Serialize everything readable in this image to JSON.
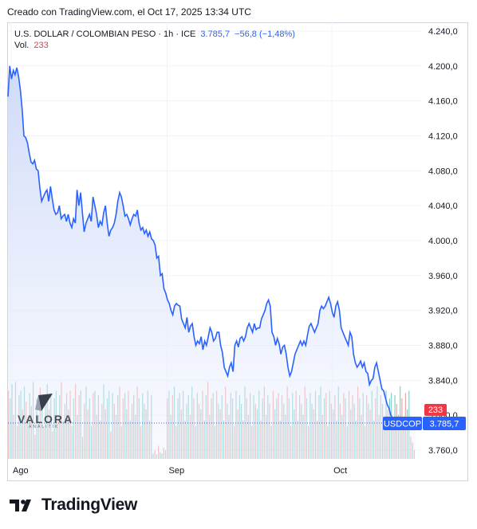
{
  "caption": "Creado con TradingView.com, el Oct 17, 2025 13:34 UTC",
  "legend": {
    "symbol": "U.S. DOLLAR / COLOMBIAN PESO · 1h · ICE",
    "last": "3.785,7",
    "change": "−56,8 (−1,48%)",
    "vol_label": "Vol.",
    "vol_value": "233"
  },
  "badges": {
    "volume": "233",
    "ticker": "USDCOP",
    "price": "3.785,7"
  },
  "watermark": {
    "name": "VALORA",
    "sub": "ANALITIK"
  },
  "brand": "TradingView",
  "colors": {
    "line": "#2962ff",
    "area_top": "#c9d6f7",
    "vol_up": "#26a69a",
    "vol_down": "#ef5350",
    "badge_price": "#2962ff",
    "badge_vol": "#f23645"
  },
  "chart_data": {
    "type": "area",
    "title": "U.S. DOLLAR / COLOMBIAN PESO · 1h · ICE",
    "x_ticks": [
      {
        "label": "Ago",
        "index": 0
      },
      {
        "label": "Sep",
        "index": 88
      },
      {
        "label": "Oct",
        "index": 181
      }
    ],
    "y_ticks": [
      "4.240,0",
      "4.200,0",
      "4.160,0",
      "4.120,0",
      "4.080,0",
      "4.040,0",
      "4.000,0",
      "3.960,0",
      "3.920,0",
      "3.880,0",
      "3.840,0",
      "3.800,0",
      "3.760,0"
    ],
    "ylim": [
      3750,
      4250
    ],
    "y_tick_values": [
      4240,
      4200,
      4160,
      4120,
      4080,
      4040,
      4000,
      3960,
      3920,
      3880,
      3840,
      3800,
      3760
    ],
    "series": [
      {
        "values": [
          4165,
          4200,
          4185,
          4195,
          4190,
          4198,
          4188,
          4172,
          4150,
          4120,
          4118,
          4112,
          4100,
          4090,
          4088,
          4092,
          4082,
          4080,
          4060,
          4045,
          4050,
          4055,
          4058,
          4045,
          4062,
          4048,
          4035,
          4030,
          4032,
          4040,
          4025,
          4028,
          4030,
          4022,
          4030,
          4020,
          4015,
          4025,
          4020,
          4058,
          4040,
          4055,
          4032,
          4010,
          4020,
          4025,
          4030,
          4022,
          4050,
          4040,
          4030,
          4015,
          4022,
          4018,
          4032,
          4040,
          4020,
          4005,
          4012,
          4015,
          4020,
          4030,
          4045,
          4055,
          4050,
          4040,
          4028,
          4030,
          4025,
          4018,
          4025,
          4030,
          4028,
          4035,
          4020,
          4012,
          4015,
          4008,
          4012,
          4005,
          4010,
          4002,
          4000,
          3995,
          3980,
          3982,
          3960,
          3962,
          3945,
          3940,
          3932,
          3928,
          3920,
          3915,
          3925,
          3928,
          3926,
          3925,
          3910,
          3905,
          3900,
          3912,
          3895,
          3902,
          3905,
          3890,
          3880,
          3885,
          3882,
          3890,
          3875,
          3885,
          3880,
          3890,
          3900,
          3895,
          3885,
          3888,
          3895,
          3895,
          3880,
          3872,
          3855,
          3850,
          3845,
          3855,
          3860,
          3850,
          3880,
          3885,
          3878,
          3888,
          3890,
          3885,
          3890,
          3900,
          3905,
          3900,
          3895,
          3905,
          3898,
          3900,
          3900,
          3910,
          3915,
          3920,
          3928,
          3932,
          3925,
          3895,
          3890,
          3880,
          3888,
          3882,
          3870,
          3878,
          3880,
          3870,
          3855,
          3845,
          3850,
          3860,
          3870,
          3875,
          3880,
          3885,
          3880,
          3885,
          3880,
          3892,
          3902,
          3905,
          3900,
          3895,
          3900,
          3905,
          3920,
          3925,
          3922,
          3925,
          3930,
          3935,
          3928,
          3918,
          3912,
          3925,
          3930,
          3920,
          3900,
          3895,
          3890,
          3885,
          3880,
          3895,
          3890,
          3870,
          3860,
          3855,
          3858,
          3862,
          3855,
          3860,
          3850,
          3848,
          3835,
          3840,
          3842,
          3855,
          3860,
          3850,
          3840,
          3830,
          3828,
          3820,
          3812,
          3808,
          3800,
          3797,
          3792,
          3786,
          3785.7,
          3785.7,
          3785.7,
          3785.7,
          3785.7,
          3785.7,
          3785.7,
          3785.7,
          3785.7,
          3785.7,
          3785.7
        ]
      }
    ],
    "volume": {
      "ylim": [
        0,
        1
      ],
      "values": [
        0.62,
        0.55,
        0.68,
        0.4,
        0.7,
        0.3,
        0.58,
        0.62,
        0.45,
        0.66,
        0.52,
        0.35,
        0.6,
        0.48,
        0.7,
        0.22,
        0.55,
        0.4,
        0.65,
        0.58,
        0.3,
        0.5,
        0.68,
        0.45,
        0.6,
        0.25,
        0.55,
        0.62,
        0.4,
        0.58,
        0.7,
        0.35,
        0.5,
        0.6,
        0.45,
        0.62,
        0.3,
        0.55,
        0.68,
        0.4,
        0.58,
        0.62,
        0.2,
        0.5,
        0.66,
        0.45,
        0.55,
        0.3,
        0.6,
        0.62,
        0.4,
        0.58,
        0.35,
        0.5,
        0.68,
        0.45,
        0.55,
        0.62,
        0.25,
        0.6,
        0.5,
        0.4,
        0.58,
        0.66,
        0.3,
        0.55,
        0.6,
        0.45,
        0.62,
        0.35,
        0.5,
        0.58,
        0.4,
        0.66,
        0.55,
        0.3,
        0.6,
        0.5,
        0.45,
        0.62,
        0.35,
        0.58,
        0.05,
        0.08,
        0.04,
        0.12,
        0.06,
        0.05,
        0.1,
        0.08,
        0.55,
        0.62,
        0.4,
        0.58,
        0.66,
        0.3,
        0.55,
        0.6,
        0.45,
        0.62,
        0.35,
        0.5,
        0.58,
        0.4,
        0.66,
        0.55,
        0.3,
        0.6,
        0.5,
        0.45,
        0.62,
        0.35,
        0.58,
        0.7,
        0.4,
        0.55,
        0.6,
        0.3,
        0.62,
        0.5,
        0.45,
        0.58,
        0.35,
        0.66,
        0.5,
        0.4,
        0.6,
        0.55,
        0.3,
        0.62,
        0.45,
        0.58,
        0.5,
        0.35,
        0.66,
        0.55,
        0.4,
        0.6,
        0.3,
        0.58,
        0.5,
        0.45,
        0.62,
        0.35,
        0.55,
        0.66,
        0.4,
        0.58,
        0.5,
        0.3,
        0.62,
        0.45,
        0.55,
        0.6,
        0.35,
        0.58,
        0.5,
        0.4,
        0.66,
        0.55,
        0.3,
        0.6,
        0.45,
        0.62,
        0.35,
        0.58,
        0.5,
        0.4,
        0.66,
        0.55,
        0.3,
        0.6,
        0.5,
        0.45,
        0.62,
        0.35,
        0.58,
        0.66,
        0.4,
        0.55,
        0.6,
        0.3,
        0.62,
        0.5,
        0.45,
        0.58,
        0.35,
        0.66,
        0.5,
        0.4,
        0.6,
        0.55,
        0.3,
        0.62,
        0.45,
        0.58,
        0.5,
        0.35,
        0.66,
        0.55,
        0.4,
        0.6,
        0.3,
        0.58,
        0.5,
        0.45,
        0.62,
        0.35,
        0.55,
        0.66,
        0.4,
        0.58,
        0.5,
        0.3,
        0.62,
        0.45,
        0.55,
        0.6,
        0.35,
        0.58,
        0.5,
        0.4,
        0.66,
        0.55,
        0.3,
        0.6,
        0.45,
        0.62,
        0.2,
        0.15,
        0.08
      ],
      "up_pattern": [
        0,
        1,
        1,
        0,
        1,
        0,
        1,
        1,
        0,
        1
      ]
    }
  }
}
